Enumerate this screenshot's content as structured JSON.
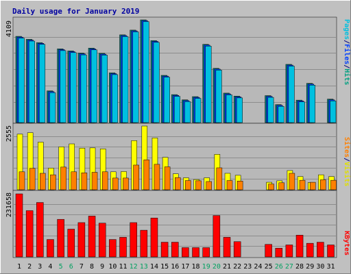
{
  "chart_data": [
    {
      "type": "bar",
      "title": "Daily usage for January 2019",
      "ymax_label": "4109",
      "ylabel_parts": [
        {
          "text": "Pages",
          "color": "#00c0e0"
        },
        {
          "text": "/",
          "color": "#000080"
        },
        {
          "text": "Files",
          "color": "#0040ff"
        },
        {
          "text": "/",
          "color": "#000080"
        },
        {
          "text": "Hits",
          "color": "#00a080"
        }
      ],
      "categories": [
        "1",
        "2",
        "3",
        "4",
        "5",
        "6",
        "7",
        "8",
        "9",
        "10",
        "11",
        "12",
        "13",
        "14",
        "15",
        "16",
        "17",
        "18",
        "19",
        "20",
        "21",
        "22",
        "23",
        "24",
        "25",
        "26",
        "27",
        "28",
        "29",
        "30",
        "31"
      ],
      "weekend_days": [
        "5",
        "6",
        "12",
        "13",
        "19",
        "20",
        "26",
        "27"
      ],
      "series": [
        {
          "name": "Hits",
          "color": "#008080",
          "values": [
            3450,
            3330,
            3200,
            1270,
            2950,
            2870,
            2780,
            2980,
            2770,
            1990,
            3510,
            3700,
            4109,
            3280,
            1890,
            1120,
            910,
            1040,
            3130,
            2170,
            1180,
            1060,
            0,
            0,
            1080,
            720,
            2330,
            900,
            1570,
            0,
            940
          ]
        },
        {
          "name": "Files",
          "color": "#0040ff",
          "values": [
            3420,
            3300,
            3170,
            1240,
            2920,
            2840,
            2750,
            2950,
            2740,
            1960,
            3480,
            3670,
            4080,
            3250,
            1860,
            1090,
            880,
            1010,
            3100,
            2140,
            1150,
            1030,
            0,
            0,
            1050,
            690,
            2300,
            870,
            1540,
            0,
            910
          ]
        },
        {
          "name": "Pages",
          "color": "#00c0e0",
          "values": [
            3380,
            3260,
            3130,
            1200,
            2880,
            2800,
            2710,
            2910,
            2700,
            1920,
            3440,
            3630,
            4040,
            3210,
            1820,
            1050,
            840,
            970,
            3060,
            2100,
            1110,
            990,
            0,
            0,
            1010,
            650,
            2260,
            830,
            1500,
            0,
            870
          ]
        }
      ]
    },
    {
      "type": "bar",
      "ymax_label": "2555",
      "ylabel_parts": [
        {
          "text": "Sites",
          "color": "#ff8000"
        },
        {
          "text": "/",
          "color": "#000080"
        },
        {
          "text": "Visits",
          "color": "#e0e000"
        }
      ],
      "categories": [
        "1",
        "2",
        "3",
        "4",
        "5",
        "6",
        "7",
        "8",
        "9",
        "10",
        "11",
        "12",
        "13",
        "14",
        "15",
        "16",
        "17",
        "18",
        "19",
        "20",
        "21",
        "22",
        "23",
        "24",
        "25",
        "26",
        "27",
        "28",
        "29",
        "30",
        "31"
      ],
      "series": [
        {
          "name": "Visits",
          "color": "#ffff00",
          "values": [
            2230,
            2290,
            1910,
            870,
            1720,
            1840,
            1670,
            1680,
            1640,
            720,
            730,
            1970,
            2555,
            2080,
            1300,
            640,
            480,
            410,
            480,
            1420,
            660,
            580,
            0,
            0,
            300,
            360,
            770,
            530,
            290,
            600,
            530
          ]
        },
        {
          "name": "Sites",
          "color": "#ff8000",
          "values": [
            720,
            860,
            660,
            600,
            910,
            720,
            680,
            700,
            720,
            470,
            470,
            990,
            1200,
            1020,
            920,
            490,
            370,
            360,
            330,
            880,
            370,
            350,
            0,
            0,
            230,
            280,
            660,
            380,
            300,
            400,
            380
          ]
        }
      ]
    },
    {
      "type": "bar",
      "ymax_label": "231658",
      "ylabel_parts": [
        {
          "text": "KBytes",
          "color": "#ff0000"
        }
      ],
      "categories": [
        "1",
        "2",
        "3",
        "4",
        "5",
        "6",
        "7",
        "8",
        "9",
        "10",
        "11",
        "12",
        "13",
        "14",
        "15",
        "16",
        "17",
        "18",
        "19",
        "20",
        "21",
        "22",
        "23",
        "24",
        "25",
        "26",
        "27",
        "28",
        "29",
        "30",
        "31"
      ],
      "series": [
        {
          "name": "KBytes",
          "color": "#ff0000",
          "values": [
            231658,
            170000,
            200000,
            64000,
            138000,
            102000,
            126000,
            150000,
            124000,
            64000,
            72000,
            126000,
            98000,
            143000,
            54000,
            54000,
            34000,
            34000,
            34000,
            152000,
            72000,
            56000,
            0,
            0,
            46000,
            32000,
            44000,
            80000,
            50000,
            54000,
            44000
          ]
        }
      ]
    }
  ]
}
